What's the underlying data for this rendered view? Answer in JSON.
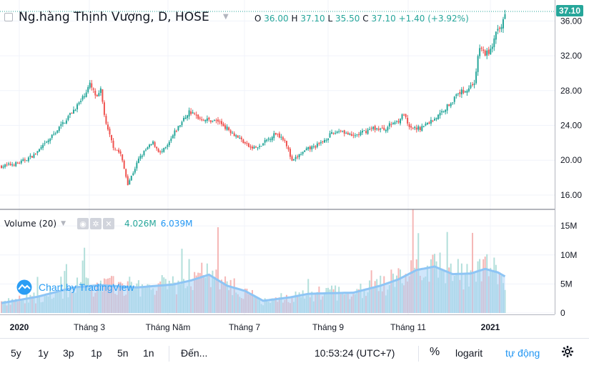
{
  "legend": {
    "title": "Ng.hàng Thịnh Vượng, D, HOSE",
    "o_label": "O",
    "o_value": "36.00",
    "h_label": "H",
    "h_value": "37.10",
    "l_label": "L",
    "l_value": "35.50",
    "c_label": "C",
    "c_value": "37.10",
    "change": "+1.40 (+3.92%)"
  },
  "last_price_tag": "37.10",
  "volume_legend": {
    "label": "Volume (20)",
    "value1": "4.026M",
    "value2": "6.039M"
  },
  "watermark": "Chart by TradingView",
  "colors": {
    "up": "#26a69a",
    "down": "#ef5350",
    "vol_up": "#b2dfdb",
    "vol_down": "#f5b7b6",
    "ma_line": "#8ec5f5",
    "ma_fill": "#a9d1f7"
  },
  "bottom_bar": {
    "ranges": [
      "5y",
      "1y",
      "3p",
      "1p",
      "5n",
      "1n"
    ],
    "goto": "Đến...",
    "time": "10:53:24 (UTC+7)",
    "percent": "%",
    "log": "logarit",
    "auto": "tự động",
    "settings_icon": "gear-icon"
  },
  "chart_data": {
    "type": "candlestick",
    "title": "Ng.hàng Thịnh Vượng, D, HOSE",
    "x_tick_labels": [
      "2020",
      "Tháng 3",
      "Tháng Năm",
      "Tháng 7",
      "Tháng 9",
      "Tháng 11",
      "2021"
    ],
    "price_axis": {
      "ticks": [
        16,
        20,
        24,
        28,
        32,
        36
      ],
      "tick_labels": [
        "16.00",
        "20.00",
        "24.00",
        "28.00",
        "32.00",
        "36.00"
      ],
      "range": [
        14.6,
        38.0
      ]
    },
    "volume_axis": {
      "ticks": [
        0,
        5,
        10,
        15
      ],
      "tick_labels": [
        "0",
        "5M",
        "10M",
        "15M"
      ],
      "range": [
        0,
        16.5
      ]
    },
    "price_keypoints": [
      [
        0,
        19.3
      ],
      [
        10,
        19.7
      ],
      [
        18,
        20.6
      ],
      [
        25,
        22.0
      ],
      [
        31,
        23.5
      ],
      [
        37,
        25.0
      ],
      [
        44,
        26.8
      ],
      [
        49,
        28.7
      ],
      [
        53,
        27.1
      ],
      [
        55,
        28.0
      ],
      [
        58,
        24.0
      ],
      [
        62,
        21.6
      ],
      [
        66,
        20.7
      ],
      [
        70,
        17.3
      ],
      [
        73,
        18.6
      ],
      [
        76,
        20.1
      ],
      [
        80,
        21.2
      ],
      [
        84,
        22.0
      ],
      [
        88,
        20.8
      ],
      [
        92,
        21.6
      ],
      [
        96,
        23.2
      ],
      [
        100,
        24.4
      ],
      [
        104,
        25.6
      ],
      [
        110,
        24.8
      ],
      [
        115,
        24.6
      ],
      [
        120,
        24.5
      ],
      [
        126,
        23.5
      ],
      [
        132,
        22.5
      ],
      [
        138,
        21.4
      ],
      [
        143,
        21.5
      ],
      [
        147,
        22.3
      ],
      [
        152,
        23.1
      ],
      [
        157,
        22.4
      ],
      [
        161,
        19.8
      ],
      [
        165,
        20.6
      ],
      [
        170,
        21.3
      ],
      [
        176,
        21.8
      ],
      [
        182,
        22.9
      ],
      [
        188,
        23.5
      ],
      [
        194,
        22.7
      ],
      [
        200,
        23.2
      ],
      [
        206,
        23.7
      ],
      [
        212,
        23.5
      ],
      [
        216,
        24.2
      ],
      [
        220,
        24.6
      ],
      [
        223,
        25.3
      ],
      [
        226,
        23.6
      ],
      [
        232,
        23.7
      ],
      [
        238,
        24.5
      ],
      [
        242,
        25.1
      ],
      [
        246,
        26.0
      ],
      [
        250,
        26.9
      ],
      [
        254,
        27.8
      ],
      [
        258,
        28.1
      ],
      [
        262,
        29.0
      ],
      [
        265,
        33.0
      ],
      [
        268,
        32.2
      ],
      [
        271,
        32.6
      ],
      [
        274,
        34.5
      ],
      [
        277,
        35.3
      ],
      [
        279,
        37.1
      ]
    ],
    "volume_keypoints": [
      [
        0,
        1.7
      ],
      [
        20,
        2.8
      ],
      [
        40,
        4.4
      ],
      [
        55,
        4.8
      ],
      [
        75,
        4.4
      ],
      [
        95,
        4.9
      ],
      [
        105,
        5.6
      ],
      [
        115,
        6.6
      ],
      [
        125,
        4.7
      ],
      [
        135,
        3.8
      ],
      [
        145,
        2.1
      ],
      [
        160,
        2.7
      ],
      [
        170,
        3.3
      ],
      [
        180,
        3.4
      ],
      [
        195,
        3.5
      ],
      [
        210,
        4.7
      ],
      [
        220,
        5.8
      ],
      [
        230,
        7.4
      ],
      [
        240,
        8.0
      ],
      [
        250,
        6.7
      ],
      [
        260,
        6.8
      ],
      [
        268,
        7.6
      ],
      [
        275,
        7.0
      ],
      [
        279,
        6.3
      ]
    ],
    "n_bars": 280
  }
}
